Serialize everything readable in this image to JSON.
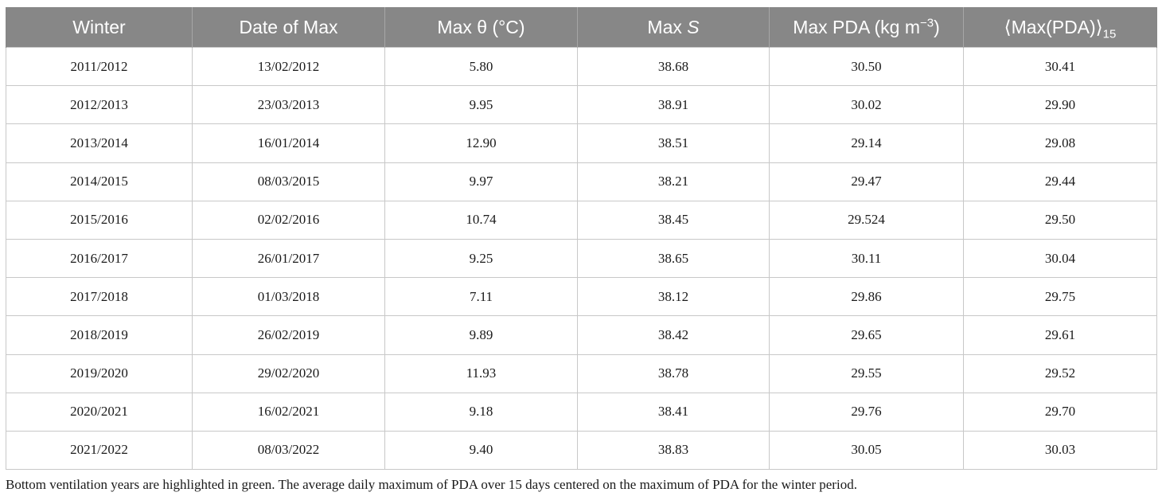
{
  "table": {
    "headers": {
      "winter": "Winter",
      "date_of_max": "Date of Max",
      "max_theta": "Max θ (°C)",
      "max_s_prefix": "Max ",
      "max_s_symbol": "S",
      "max_pda_prefix": "Max PDA (kg m",
      "max_pda_exponent": "−3",
      "max_pda_suffix": ")",
      "avg_pda_main": "⟨Max(PDA)⟩",
      "avg_pda_subscript": "15"
    },
    "rows": [
      [
        "2011/2012",
        "13/02/2012",
        "5.80",
        "38.68",
        "30.50",
        "30.41"
      ],
      [
        "2012/2013",
        "23/03/2013",
        "9.95",
        "38.91",
        "30.02",
        "29.90"
      ],
      [
        "2013/2014",
        "16/01/2014",
        "12.90",
        "38.51",
        "29.14",
        "29.08"
      ],
      [
        "2014/2015",
        "08/03/2015",
        "9.97",
        "38.21",
        "29.47",
        "29.44"
      ],
      [
        "2015/2016",
        "02/02/2016",
        "10.74",
        "38.45",
        "29.524",
        "29.50"
      ],
      [
        "2016/2017",
        "26/01/2017",
        "9.25",
        "38.65",
        "30.11",
        "30.04"
      ],
      [
        "2017/2018",
        "01/03/2018",
        "7.11",
        "38.12",
        "29.86",
        "29.75"
      ],
      [
        "2018/2019",
        "26/02/2019",
        "9.89",
        "38.42",
        "29.65",
        "29.61"
      ],
      [
        "2019/2020",
        "29/02/2020",
        "11.93",
        "38.78",
        "29.55",
        "29.52"
      ],
      [
        "2020/2021",
        "16/02/2021",
        "9.18",
        "38.41",
        "29.76",
        "29.70"
      ],
      [
        "2021/2022",
        "08/03/2022",
        "9.40",
        "38.83",
        "30.05",
        "30.03"
      ]
    ]
  },
  "footnote": "Bottom ventilation years are highlighted in green. The average daily maximum of PDA over 15 days centered on the maximum of PDA for the winter period.",
  "colors": {
    "header_background": "#878787",
    "header_text": "#ffffff",
    "grid_lines": "#c8c8c8",
    "body_text": "#1a1a1a"
  }
}
